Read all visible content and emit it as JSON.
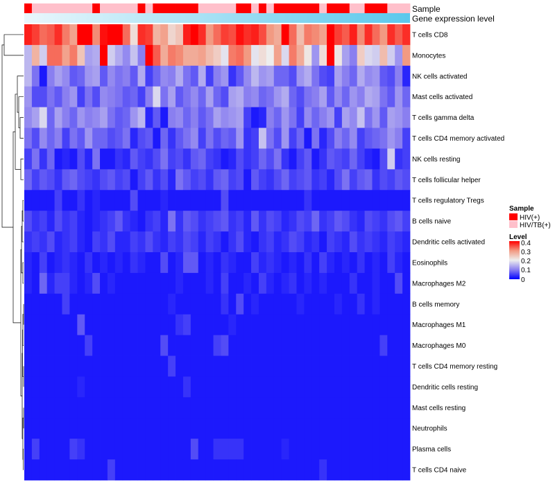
{
  "chart_data": {
    "type": "heatmap",
    "title": "",
    "n_columns": 51,
    "annotation_labels": {
      "sample": "Sample",
      "gene_expression": "Gene expression level"
    },
    "sample_groups": [
      "HIV(+)",
      "HIV/TB(+)",
      "HIV/TB(+)",
      "HIV/TB(+)",
      "HIV/TB(+)",
      "HIV/TB(+)",
      "HIV/TB(+)",
      "HIV/TB(+)",
      "HIV/TB(+)",
      "HIV(+)",
      "HIV/TB(+)",
      "HIV/TB(+)",
      "HIV/TB(+)",
      "HIV/TB(+)",
      "HIV/TB(+)",
      "HIV(+)",
      "HIV/TB(+)",
      "HIV(+)",
      "HIV(+)",
      "HIV(+)",
      "HIV(+)",
      "HIV(+)",
      "HIV(+)",
      "HIV/TB(+)",
      "HIV/TB(+)",
      "HIV/TB(+)",
      "HIV/TB(+)",
      "HIV/TB(+)",
      "HIV(+)",
      "HIV(+)",
      "HIV/TB(+)",
      "HIV(+)",
      "HIV/TB(+)",
      "HIV(+)",
      "HIV(+)",
      "HIV(+)",
      "HIV(+)",
      "HIV(+)",
      "HIV(+)",
      "HIV/TB(+)",
      "HIV(+)",
      "HIV(+)",
      "HIV(+)",
      "HIV/TB(+)",
      "HIV/TB(+)",
      "HIV(+)",
      "HIV(+)",
      "HIV(+)",
      "HIV/TB(+)",
      "HIV/TB(+)",
      "HIV/TB(+)"
    ],
    "gene_expression_gradient": [
      "#eaf7fc",
      "#5bc8ec"
    ],
    "rows": [
      "T cells CD8",
      "Monocytes",
      "NK cells activated",
      "Mast cells activated",
      "T cells gamma delta",
      "T cells CD4 memory activated",
      "NK cells resting",
      "T cells follicular helper",
      "T cells regulatory  Tregs",
      "B cells naive",
      "Dendritic cells activated",
      "Eosinophils",
      "Macrophages M2",
      "B cells memory",
      "Macrophages M1",
      "Macrophages M0",
      "T cells CD4 memory resting",
      "Dendritic cells resting",
      "Mast cells resting",
      "Neutrophils",
      "Plasma cells",
      "T cells CD4 naive"
    ],
    "values": [
      [
        0.38,
        0.36,
        0.33,
        0.34,
        0.37,
        0.32,
        0.29,
        0.4,
        0.41,
        0.31,
        0.39,
        0.42,
        0.4,
        0.33,
        0.22,
        0.37,
        0.36,
        0.27,
        0.29,
        0.23,
        0.25,
        0.38,
        0.4,
        0.37,
        0.3,
        0.33,
        0.36,
        0.35,
        0.39,
        0.37,
        0.38,
        0.35,
        0.3,
        0.28,
        0.41,
        0.33,
        0.26,
        0.32,
        0.31,
        0.29,
        0.4,
        0.36,
        0.34,
        0.38,
        0.31,
        0.37,
        0.33,
        0.3,
        0.37,
        0.34,
        0.37
      ],
      [
        0.15,
        0.27,
        0.17,
        0.33,
        0.33,
        0.29,
        0.32,
        0.25,
        0.13,
        0.14,
        0.4,
        0.17,
        0.14,
        0.11,
        0.16,
        0.1,
        0.42,
        0.34,
        0.28,
        0.32,
        0.31,
        0.28,
        0.28,
        0.29,
        0.26,
        0.24,
        0.19,
        0.32,
        0.33,
        0.3,
        0.19,
        0.22,
        0.2,
        0.29,
        0.18,
        0.32,
        0.28,
        0.21,
        0.12,
        0.22,
        0.4,
        0.21,
        0.13,
        0.1,
        0.24,
        0.18,
        0.17,
        0.26,
        0.17,
        0.12,
        0.3
      ],
      [
        0.15,
        0.09,
        0.02,
        0.1,
        0.13,
        0.11,
        0.07,
        0.08,
        0.12,
        0.13,
        0.07,
        0.11,
        0.09,
        0.1,
        0.07,
        0.14,
        0.05,
        0.08,
        0.11,
        0.1,
        0.14,
        0.09,
        0.07,
        0.14,
        0.05,
        0.1,
        0.12,
        0.04,
        0.07,
        0.11,
        0.15,
        0.12,
        0.13,
        0.08,
        0.08,
        0.06,
        0.12,
        0.14,
        0.09,
        0.06,
        0.05,
        0.13,
        0.1,
        0.08,
        0.14,
        0.11,
        0.12,
        0.07,
        0.06,
        0.1,
        0.03
      ],
      [
        0.12,
        0.06,
        0.06,
        0.09,
        0.07,
        0.1,
        0.12,
        0.05,
        0.09,
        0.06,
        0.11,
        0.1,
        0.09,
        0.07,
        0.08,
        0.05,
        0.1,
        0.18,
        0.09,
        0.13,
        0.07,
        0.09,
        0.11,
        0.08,
        0.13,
        0.08,
        0.06,
        0.13,
        0.14,
        0.1,
        0.11,
        0.08,
        0.09,
        0.12,
        0.14,
        0.08,
        0.06,
        0.09,
        0.1,
        0.13,
        0.07,
        0.11,
        0.08,
        0.12,
        0.1,
        0.14,
        0.13,
        0.09,
        0.07,
        0.12,
        0.08
      ],
      [
        0.11,
        0.13,
        0.18,
        0.08,
        0.13,
        0.1,
        0.08,
        0.12,
        0.1,
        0.11,
        0.13,
        0.09,
        0.07,
        0.08,
        0.12,
        0.15,
        0.03,
        0.07,
        0.02,
        0.1,
        0.11,
        0.08,
        0.1,
        0.07,
        0.09,
        0.13,
        0.11,
        0.12,
        0.13,
        0.05,
        0.02,
        0.03,
        0.1,
        0.08,
        0.12,
        0.09,
        0.05,
        0.11,
        0.08,
        0.1,
        0.12,
        0.05,
        0.13,
        0.11,
        0.16,
        0.09,
        0.12,
        0.07,
        0.13,
        0.12,
        0.1
      ],
      [
        0.09,
        0.06,
        0.11,
        0.08,
        0.1,
        0.05,
        0.09,
        0.07,
        0.12,
        0.08,
        0.08,
        0.06,
        0.07,
        0.09,
        0.03,
        0.06,
        0.07,
        0.02,
        0.08,
        0.04,
        0.07,
        0.09,
        0.11,
        0.05,
        0.09,
        0.06,
        0.08,
        0.07,
        0.12,
        0.04,
        0.05,
        0.16,
        0.09,
        0.06,
        0.12,
        0.05,
        0.08,
        0.02,
        0.09,
        0.03,
        0.06,
        0.1,
        0.08,
        0.11,
        0.05,
        0.07,
        0.08,
        0.09,
        0.12,
        0.1,
        0.05
      ],
      [
        0.05,
        0.09,
        0.04,
        0.08,
        0.02,
        0.03,
        0.02,
        0.06,
        0.03,
        0.09,
        0.02,
        0.02,
        0.04,
        0.03,
        0.07,
        0.05,
        0.04,
        0.06,
        0.09,
        0.05,
        0.06,
        0.04,
        0.07,
        0.08,
        0.05,
        0.04,
        0.02,
        0.03,
        0.06,
        0.04,
        0.05,
        0.08,
        0.06,
        0.09,
        0.04,
        0.02,
        0.05,
        0.07,
        0.02,
        0.04,
        0.07,
        0.06,
        0.05,
        0.08,
        0.05,
        0.03,
        0.02,
        0.06,
        0.17,
        0.04,
        0.05
      ],
      [
        0.08,
        0.05,
        0.07,
        0.06,
        0.04,
        0.07,
        0.08,
        0.06,
        0.05,
        0.04,
        0.06,
        0.07,
        0.05,
        0.06,
        0.02,
        0.05,
        0.07,
        0.04,
        0.06,
        0.03,
        0.09,
        0.07,
        0.05,
        0.06,
        0.04,
        0.07,
        0.08,
        0.05,
        0.06,
        0.02,
        0.07,
        0.05,
        0.04,
        0.06,
        0.08,
        0.05,
        0.06,
        0.07,
        0.04,
        0.05,
        0.03,
        0.06,
        0.09,
        0.05,
        0.07,
        0.08,
        0.04,
        0.06,
        0.05,
        0.07,
        0.06
      ],
      [
        0.02,
        0.02,
        0.02,
        0.02,
        0.05,
        0.02,
        0.02,
        0.04,
        0.02,
        0.03,
        0.02,
        0.02,
        0.02,
        0.02,
        0.06,
        0.02,
        0.02,
        0.02,
        0.03,
        0.02,
        0.02,
        0.02,
        0.02,
        0.02,
        0.02,
        0.02,
        0.06,
        0.02,
        0.02,
        0.02,
        0.02,
        0.02,
        0.02,
        0.02,
        0.02,
        0.02,
        0.02,
        0.04,
        0.02,
        0.02,
        0.02,
        0.02,
        0.02,
        0.02,
        0.02,
        0.02,
        0.02,
        0.02,
        0.02,
        0.02,
        0.02
      ],
      [
        0.06,
        0.04,
        0.05,
        0.03,
        0.06,
        0.04,
        0.05,
        0.03,
        0.02,
        0.03,
        0.04,
        0.05,
        0.07,
        0.04,
        0.03,
        0.02,
        0.04,
        0.05,
        0.03,
        0.09,
        0.04,
        0.07,
        0.06,
        0.04,
        0.05,
        0.06,
        0.07,
        0.04,
        0.05,
        0.03,
        0.07,
        0.04,
        0.06,
        0.05,
        0.03,
        0.04,
        0.06,
        0.05,
        0.08,
        0.04,
        0.05,
        0.07,
        0.06,
        0.04,
        0.03,
        0.06,
        0.05,
        0.04,
        0.06,
        0.07,
        0.05
      ],
      [
        0.04,
        0.05,
        0.04,
        0.06,
        0.03,
        0.04,
        0.05,
        0.03,
        0.02,
        0.05,
        0.04,
        0.06,
        0.03,
        0.03,
        0.05,
        0.04,
        0.06,
        0.04,
        0.03,
        0.05,
        0.04,
        0.06,
        0.05,
        0.03,
        0.05,
        0.04,
        0.02,
        0.04,
        0.06,
        0.03,
        0.02,
        0.04,
        0.05,
        0.03,
        0.04,
        0.06,
        0.05,
        0.03,
        0.04,
        0.02,
        0.05,
        0.04,
        0.03,
        0.06,
        0.04,
        0.05,
        0.04,
        0.03,
        0.05,
        0.04,
        0.03
      ],
      [
        0.03,
        0.02,
        0.05,
        0.02,
        0.03,
        0.04,
        0.03,
        0.02,
        0.04,
        0.02,
        0.03,
        0.02,
        0.03,
        0.02,
        0.04,
        0.03,
        0.02,
        0.02,
        0.06,
        0.02,
        0.03,
        0.07,
        0.07,
        0.02,
        0.03,
        0.02,
        0.04,
        0.03,
        0.02,
        0.02,
        0.05,
        0.03,
        0.04,
        0.03,
        0.02,
        0.03,
        0.02,
        0.04,
        0.02,
        0.05,
        0.03,
        0.02,
        0.03,
        0.02,
        0.04,
        0.02,
        0.03,
        0.02,
        0.05,
        0.03,
        0.02
      ],
      [
        0.03,
        0.02,
        0.08,
        0.03,
        0.05,
        0.05,
        0.03,
        0.02,
        0.03,
        0.06,
        0.02,
        0.03,
        0.02,
        0.02,
        0.02,
        0.02,
        0.02,
        0.02,
        0.02,
        0.02,
        0.03,
        0.02,
        0.02,
        0.02,
        0.03,
        0.02,
        0.05,
        0.02,
        0.02,
        0.03,
        0.02,
        0.05,
        0.03,
        0.02,
        0.03,
        0.04,
        0.02,
        0.03,
        0.02,
        0.03,
        0.02,
        0.02,
        0.02,
        0.04,
        0.02,
        0.02,
        0.03,
        0.02,
        0.02,
        0.06,
        0.02
      ],
      [
        0.02,
        0.02,
        0.02,
        0.02,
        0.02,
        0.05,
        0.02,
        0.02,
        0.02,
        0.02,
        0.02,
        0.02,
        0.02,
        0.02,
        0.02,
        0.02,
        0.02,
        0.02,
        0.02,
        0.03,
        0.02,
        0.02,
        0.02,
        0.02,
        0.02,
        0.02,
        0.04,
        0.02,
        0.06,
        0.02,
        0.03,
        0.02,
        0.02,
        0.02,
        0.02,
        0.02,
        0.03,
        0.02,
        0.02,
        0.02,
        0.02,
        0.03,
        0.02,
        0.02,
        0.04,
        0.02,
        0.03,
        0.02,
        0.02,
        0.02,
        0.02
      ],
      [
        0.02,
        0.02,
        0.02,
        0.02,
        0.02,
        0.02,
        0.02,
        0.07,
        0.02,
        0.02,
        0.02,
        0.02,
        0.02,
        0.02,
        0.02,
        0.02,
        0.02,
        0.02,
        0.02,
        0.02,
        0.04,
        0.05,
        0.02,
        0.02,
        0.02,
        0.02,
        0.02,
        0.03,
        0.02,
        0.02,
        0.02,
        0.02,
        0.02,
        0.02,
        0.02,
        0.02,
        0.02,
        0.02,
        0.02,
        0.02,
        0.02,
        0.02,
        0.02,
        0.02,
        0.02,
        0.02,
        0.02,
        0.02,
        0.02,
        0.02,
        0.02
      ],
      [
        0.02,
        0.02,
        0.02,
        0.02,
        0.02,
        0.02,
        0.02,
        0.02,
        0.05,
        0.02,
        0.02,
        0.02,
        0.02,
        0.02,
        0.02,
        0.02,
        0.02,
        0.02,
        0.06,
        0.02,
        0.02,
        0.02,
        0.02,
        0.02,
        0.02,
        0.05,
        0.06,
        0.02,
        0.02,
        0.02,
        0.02,
        0.02,
        0.02,
        0.02,
        0.02,
        0.02,
        0.02,
        0.02,
        0.02,
        0.02,
        0.02,
        0.02,
        0.02,
        0.02,
        0.02,
        0.02,
        0.02,
        0.05,
        0.02,
        0.02,
        0.02
      ],
      [
        0.02,
        0.02,
        0.02,
        0.02,
        0.02,
        0.02,
        0.02,
        0.02,
        0.02,
        0.02,
        0.02,
        0.02,
        0.02,
        0.02,
        0.02,
        0.02,
        0.02,
        0.02,
        0.02,
        0.05,
        0.02,
        0.02,
        0.02,
        0.02,
        0.02,
        0.02,
        0.02,
        0.02,
        0.02,
        0.02,
        0.02,
        0.02,
        0.02,
        0.02,
        0.02,
        0.02,
        0.02,
        0.02,
        0.02,
        0.02,
        0.02,
        0.02,
        0.02,
        0.02,
        0.02,
        0.02,
        0.02,
        0.02,
        0.02,
        0.02,
        0.02
      ],
      [
        0.02,
        0.02,
        0.02,
        0.02,
        0.02,
        0.02,
        0.02,
        0.03,
        0.02,
        0.02,
        0.02,
        0.02,
        0.02,
        0.02,
        0.02,
        0.02,
        0.02,
        0.02,
        0.02,
        0.02,
        0.02,
        0.04,
        0.02,
        0.02,
        0.02,
        0.02,
        0.02,
        0.02,
        0.02,
        0.02,
        0.02,
        0.02,
        0.02,
        0.02,
        0.02,
        0.02,
        0.02,
        0.02,
        0.02,
        0.02,
        0.02,
        0.02,
        0.02,
        0.02,
        0.02,
        0.02,
        0.02,
        0.02,
        0.02,
        0.02,
        0.02
      ],
      [
        0.02,
        0.02,
        0.02,
        0.02,
        0.02,
        0.02,
        0.02,
        0.02,
        0.02,
        0.02,
        0.02,
        0.02,
        0.02,
        0.02,
        0.02,
        0.02,
        0.02,
        0.02,
        0.02,
        0.02,
        0.02,
        0.02,
        0.02,
        0.02,
        0.02,
        0.02,
        0.02,
        0.02,
        0.02,
        0.02,
        0.02,
        0.02,
        0.02,
        0.02,
        0.02,
        0.02,
        0.02,
        0.02,
        0.02,
        0.02,
        0.02,
        0.02,
        0.02,
        0.02,
        0.02,
        0.02,
        0.02,
        0.02,
        0.02,
        0.02,
        0.02
      ],
      [
        0.02,
        0.02,
        0.02,
        0.02,
        0.02,
        0.02,
        0.02,
        0.02,
        0.02,
        0.02,
        0.02,
        0.02,
        0.02,
        0.02,
        0.02,
        0.02,
        0.02,
        0.02,
        0.02,
        0.02,
        0.02,
        0.02,
        0.02,
        0.02,
        0.02,
        0.02,
        0.02,
        0.02,
        0.02,
        0.02,
        0.02,
        0.02,
        0.02,
        0.02,
        0.02,
        0.02,
        0.02,
        0.02,
        0.02,
        0.02,
        0.02,
        0.02,
        0.02,
        0.02,
        0.02,
        0.02,
        0.02,
        0.02,
        0.02,
        0.02,
        0.02
      ],
      [
        0.02,
        0.05,
        0.02,
        0.02,
        0.02,
        0.02,
        0.05,
        0.04,
        0.02,
        0.02,
        0.02,
        0.02,
        0.02,
        0.02,
        0.02,
        0.02,
        0.02,
        0.02,
        0.02,
        0.02,
        0.02,
        0.02,
        0.06,
        0.02,
        0.02,
        0.04,
        0.04,
        0.04,
        0.04,
        0.02,
        0.02,
        0.02,
        0.02,
        0.02,
        0.03,
        0.02,
        0.02,
        0.02,
        0.02,
        0.02,
        0.02,
        0.02,
        0.02,
        0.02,
        0.02,
        0.02,
        0.02,
        0.02,
        0.02,
        0.02,
        0.02
      ],
      [
        0.02,
        0.02,
        0.02,
        0.02,
        0.02,
        0.02,
        0.02,
        0.02,
        0.02,
        0.02,
        0.02,
        0.05,
        0.02,
        0.02,
        0.02,
        0.02,
        0.02,
        0.02,
        0.02,
        0.02,
        0.02,
        0.02,
        0.02,
        0.02,
        0.02,
        0.02,
        0.02,
        0.02,
        0.02,
        0.02,
        0.02,
        0.02,
        0.02,
        0.02,
        0.02,
        0.02,
        0.02,
        0.02,
        0.02,
        0.04,
        0.02,
        0.02,
        0.02,
        0.02,
        0.02,
        0.02,
        0.02,
        0.02,
        0.02,
        0.02,
        0.02
      ]
    ],
    "color_scale": {
      "stops": [
        0,
        0.1,
        0.2,
        0.3,
        0.4
      ],
      "colors": [
        "#0000ff",
        "#8a7ff0",
        "#eeeeee",
        "#f29a82",
        "#ff0000"
      ]
    },
    "legend": {
      "position": "right",
      "sample_title": "Sample",
      "sample_items": [
        {
          "label": "HIV(+)",
          "color": "#ff0000"
        },
        {
          "label": "HIV/TB(+)",
          "color": "#ffc0cb"
        }
      ],
      "level_title": "Level",
      "level_ticks": [
        "0.4",
        "0.3",
        "0.2",
        "0.1",
        "0"
      ]
    },
    "row_dendrogram": "left"
  }
}
